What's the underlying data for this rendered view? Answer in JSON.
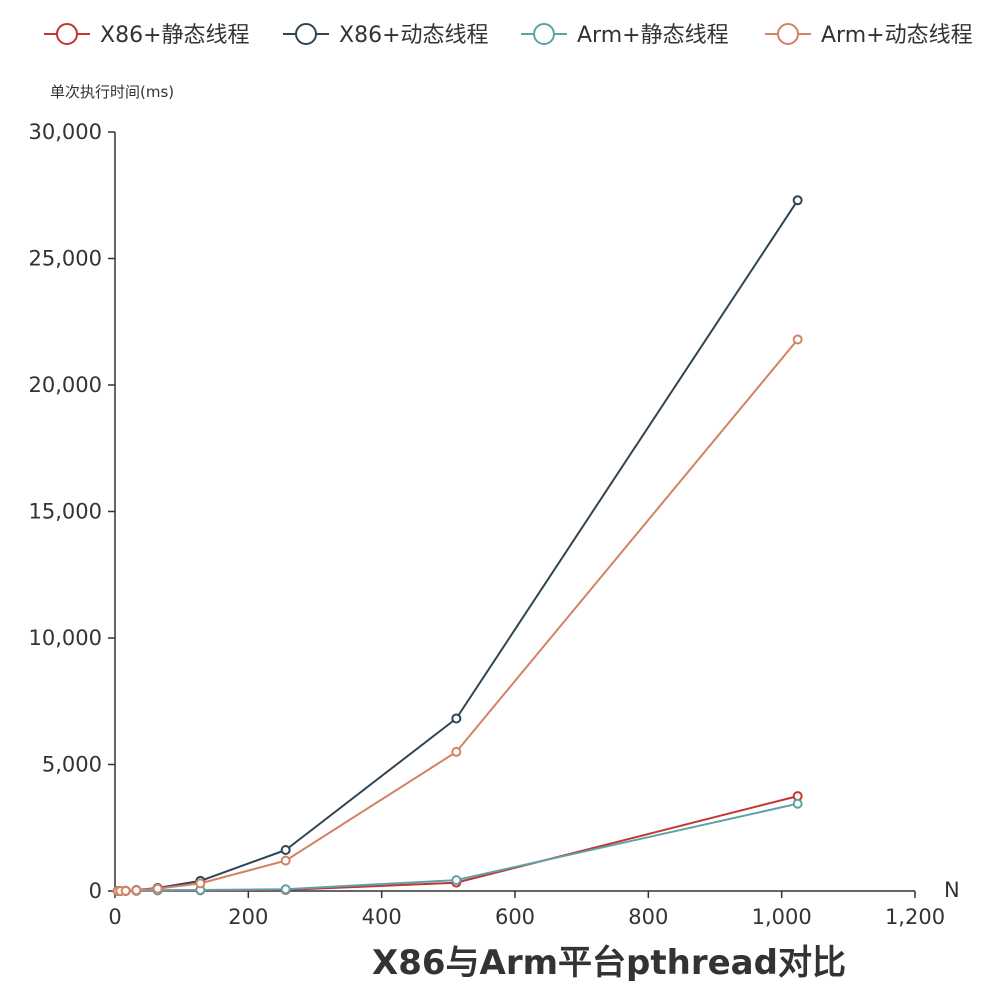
{
  "chart_data": {
    "type": "line",
    "title": "X86与Arm平台pthread对比",
    "xlabel": "N",
    "ylabel": "单次执行时间(ms)",
    "xlim": [
      0,
      1200
    ],
    "ylim": [
      0,
      30000
    ],
    "xticks": [
      "0",
      "200",
      "400",
      "600",
      "800",
      "1,000",
      "1,200"
    ],
    "yticks": [
      "0",
      "5,000",
      "10,000",
      "15,000",
      "20,000",
      "25,000",
      "30,000"
    ],
    "x": [
      4,
      8,
      16,
      32,
      64,
      128,
      256,
      512,
      1024
    ],
    "grid": false,
    "legend_position": "top",
    "series": [
      {
        "name": "X86+静态线程",
        "color": "#c23531",
        "values": [
          0.2,
          0.5,
          2,
          8,
          25,
          30,
          45,
          330,
          3750
        ]
      },
      {
        "name": "X86+动态线程",
        "color": "#2f4554",
        "values": [
          0.5,
          2,
          8,
          40,
          120,
          400,
          1620,
          6820,
          27300
        ]
      },
      {
        "name": "Arm+静态线程",
        "color": "#61a0a8",
        "values": [
          0.3,
          1,
          3,
          10,
          30,
          40,
          70,
          430,
          3450
        ]
      },
      {
        "name": "Arm+动态线程",
        "color": "#d48265",
        "values": [
          0.4,
          1.5,
          6,
          30,
          95,
          300,
          1200,
          5500,
          21800
        ]
      }
    ]
  }
}
